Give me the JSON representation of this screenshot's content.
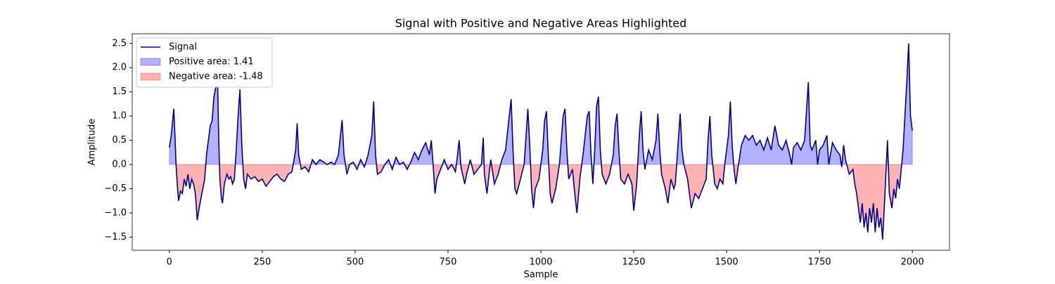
{
  "chart_data": {
    "type": "line",
    "title": "Signal with Positive and Negative Areas Highlighted",
    "xlabel": "Sample",
    "ylabel": "Amplitude",
    "x": [
      0,
      5,
      10,
      12,
      15,
      18,
      22,
      25,
      30,
      35,
      40,
      45,
      50,
      55,
      60,
      65,
      70,
      75,
      80,
      85,
      90,
      95,
      100,
      105,
      110,
      115,
      120,
      125,
      130,
      133,
      136,
      140,
      143,
      148,
      155,
      160,
      165,
      170,
      175,
      180,
      185,
      190,
      195,
      200,
      205,
      210,
      220,
      230,
      240,
      250,
      260,
      270,
      280,
      290,
      300,
      310,
      320,
      330,
      340,
      344,
      348,
      355,
      365,
      375,
      385,
      395,
      405,
      415,
      425,
      435,
      445,
      455,
      465,
      470,
      478,
      485,
      495,
      505,
      515,
      525,
      535,
      545,
      550,
      555,
      560,
      570,
      580,
      590,
      600,
      610,
      620,
      630,
      640,
      650,
      660,
      670,
      680,
      690,
      700,
      705,
      710,
      715,
      720,
      730,
      740,
      750,
      760,
      770,
      775,
      780,
      785,
      795,
      800,
      810,
      820,
      830,
      840,
      845,
      848,
      855,
      865,
      875,
      885,
      895,
      905,
      915,
      920,
      925,
      930,
      935,
      945,
      955,
      965,
      970,
      975,
      980,
      985,
      995,
      1005,
      1010,
      1015,
      1020,
      1025,
      1030,
      1040,
      1050,
      1060,
      1065,
      1070,
      1075,
      1085,
      1090,
      1097,
      1105,
      1115,
      1125,
      1130,
      1135,
      1140,
      1145,
      1150,
      1155,
      1160,
      1165,
      1175,
      1185,
      1195,
      1200,
      1205,
      1210,
      1215,
      1225,
      1235,
      1240,
      1245,
      1250,
      1258,
      1265,
      1270,
      1275,
      1280,
      1290,
      1300,
      1310,
      1315,
      1320,
      1325,
      1335,
      1342,
      1350,
      1358,
      1362,
      1370,
      1375,
      1380,
      1385,
      1395,
      1405,
      1415,
      1425,
      1435,
      1445,
      1450,
      1455,
      1460,
      1468,
      1475,
      1482,
      1490,
      1495,
      1500,
      1505,
      1510,
      1515,
      1520,
      1525,
      1530,
      1540,
      1550,
      1560,
      1570,
      1580,
      1590,
      1600,
      1610,
      1620,
      1630,
      1640,
      1650,
      1660,
      1670,
      1675,
      1680,
      1690,
      1700,
      1710,
      1720,
      1725,
      1730,
      1740,
      1745,
      1750,
      1760,
      1770,
      1775,
      1785,
      1795,
      1805,
      1810,
      1815,
      1820,
      1830,
      1840,
      1845,
      1850,
      1855,
      1860,
      1865,
      1870,
      1875,
      1880,
      1885,
      1890,
      1895,
      1900,
      1905,
      1910,
      1915,
      1920,
      1925,
      1930,
      1933,
      1938,
      1945,
      1950,
      1955,
      1960,
      1965,
      1970,
      1975,
      1980,
      1985,
      1990,
      1995,
      2000
    ],
    "series": [
      {
        "name": "Signal",
        "color": "#00008b",
        "values": [
          0.35,
          0.6,
          1.0,
          1.15,
          0.6,
          0.0,
          -0.5,
          -0.75,
          -0.55,
          -0.6,
          -0.3,
          -0.45,
          -0.2,
          -0.5,
          -0.3,
          -0.4,
          -0.6,
          -1.15,
          -0.9,
          -0.7,
          -0.5,
          -0.3,
          0.2,
          0.5,
          0.8,
          0.9,
          1.4,
          1.6,
          1.6,
          0.5,
          -0.3,
          -0.7,
          -0.8,
          -0.4,
          -0.2,
          -0.3,
          -0.25,
          -0.4,
          -0.3,
          0.3,
          1.0,
          1.55,
          0.4,
          -0.3,
          -0.5,
          -0.2,
          -0.3,
          -0.25,
          -0.35,
          -0.3,
          -0.45,
          -0.35,
          -0.25,
          -0.2,
          -0.3,
          -0.35,
          -0.2,
          -0.15,
          0.3,
          0.85,
          0.2,
          -0.1,
          -0.05,
          -0.15,
          0.1,
          0.0,
          0.1,
          0.05,
          0.0,
          0.05,
          0.0,
          0.2,
          0.92,
          0.2,
          -0.2,
          0.0,
          0.05,
          -0.1,
          0.1,
          -0.05,
          0.2,
          0.6,
          1.3,
          0.2,
          -0.2,
          -0.15,
          0.0,
          0.1,
          -0.1,
          0.15,
          0.0,
          0.05,
          -0.1,
          0.05,
          0.25,
          0.1,
          0.3,
          0.45,
          0.2,
          0.5,
          0.0,
          -0.6,
          -0.3,
          -0.1,
          0.1,
          -0.1,
          0.0,
          -0.15,
          0.15,
          0.5,
          -0.05,
          -0.4,
          -0.2,
          0.1,
          -0.2,
          -0.1,
          0.0,
          0.55,
          -0.2,
          -0.6,
          0.1,
          -0.4,
          -0.2,
          0.1,
          0.3,
          1.0,
          1.35,
          0.3,
          -0.5,
          -0.6,
          -0.3,
          0.0,
          1.15,
          0.4,
          -0.5,
          -0.9,
          -0.5,
          -0.3,
          0.3,
          0.9,
          1.1,
          0.2,
          -0.6,
          -0.8,
          -0.5,
          0.0,
          1.0,
          1.15,
          0.3,
          -0.3,
          -0.1,
          -0.5,
          -1.0,
          -0.3,
          0.3,
          1.0,
          1.1,
          0.2,
          -0.4,
          0.3,
          1.2,
          1.4,
          0.3,
          -0.2,
          -0.4,
          -0.2,
          0.2,
          0.8,
          1.05,
          0.3,
          -0.3,
          -0.4,
          -0.2,
          -0.3,
          -0.4,
          -0.95,
          -0.4,
          0.6,
          1.1,
          0.3,
          -0.1,
          0.3,
          0.1,
          0.5,
          1.05,
          0.3,
          -0.2,
          -0.5,
          -0.8,
          -0.3,
          -0.5,
          -0.4,
          0.5,
          1.05,
          0.3,
          0.0,
          -0.3,
          -0.9,
          -0.6,
          -0.7,
          -0.5,
          -0.3,
          0.5,
          1.0,
          0.2,
          -0.4,
          -0.5,
          -0.3,
          -0.4,
          0.0,
          0.3,
          0.6,
          1.3,
          0.4,
          -0.1,
          -0.4,
          -0.1,
          0.4,
          0.6,
          0.5,
          0.6,
          0.4,
          0.5,
          0.3,
          0.55,
          0.3,
          0.8,
          0.4,
          0.3,
          0.5,
          0.2,
          0.0,
          0.35,
          0.45,
          0.3,
          0.5,
          1.7,
          0.4,
          0.3,
          0.5,
          0.0,
          0.3,
          0.4,
          0.6,
          0.0,
          0.45,
          0.3,
          0.2,
          -0.05,
          0.4,
          0.1,
          -0.2,
          -0.1,
          -0.4,
          -0.6,
          -0.9,
          -1.2,
          -0.8,
          -1.3,
          -1.0,
          -1.4,
          -0.9,
          -1.2,
          -0.8,
          -1.4,
          -0.9,
          -1.3,
          -1.1,
          -1.55,
          -0.8,
          0.0,
          0.5,
          -0.6,
          -0.9,
          -0.5,
          -0.7,
          -0.3,
          -0.5,
          -0.1,
          0.3,
          1.0,
          1.7,
          2.5,
          1.0,
          0.7
        ]
      }
    ],
    "fills": [
      {
        "name": "Positive area: 1.41",
        "color": "#0000ff",
        "side": "above"
      },
      {
        "name": "Negative area: -1.48",
        "color": "#ff0000",
        "side": "below"
      }
    ],
    "xlim": [
      -100,
      2100
    ],
    "xticks": [
      0,
      250,
      500,
      750,
      1000,
      1250,
      1500,
      1750,
      2000
    ],
    "ylim": [
      -1.77,
      2.7
    ],
    "yticks": [
      {
        "value": -1.5,
        "label": "−1.5"
      },
      {
        "value": -1.0,
        "label": "−1.0"
      },
      {
        "value": -0.5,
        "label": "−0.5"
      },
      {
        "value": 0,
        "label": "0.0"
      },
      0.5,
      {
        "value": 1,
        "label": "1.0"
      },
      1.5,
      {
        "value": 2,
        "label": "2.0"
      },
      2.5
    ],
    "legend": "upper left"
  }
}
